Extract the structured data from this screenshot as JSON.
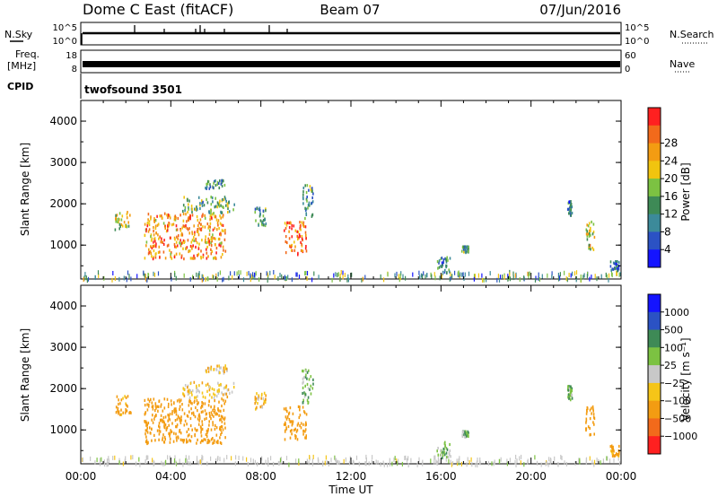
{
  "header": {
    "station": "Dome C East (fitACF)",
    "beam": "Beam 07",
    "date": "07/Jun/2016"
  },
  "top_panels": {
    "nsky_label": "N.Sky",
    "nsky_ticks": [
      "10^5",
      "10^0"
    ],
    "nsearch_label": "N.Search",
    "nsearch_ticks": [
      "10^5",
      "10^0"
    ],
    "freq_label_1": "Freq.",
    "freq_label_2": "[MHz]",
    "freq_ticks": [
      "18",
      "8"
    ],
    "nave_label": "Nave",
    "nave_ticks": [
      "60",
      "0"
    ],
    "cpid_label": "CPID",
    "cpid_text": "twofsound 3501"
  },
  "colors": {
    "power": [
      "#1414ff",
      "#2b52c4",
      "#3c8a9a",
      "#3e8a56",
      "#7cc242",
      "#f1c40f",
      "#f39c12",
      "#f26a1b",
      "#ff2020"
    ],
    "velocity": [
      "#ff2020",
      "#f26a1b",
      "#f39c12",
      "#f5c518",
      "#c8c8c8",
      "#7cc242",
      "#3e8a56",
      "#2b52c4",
      "#1414ff"
    ]
  },
  "chart_data": [
    {
      "type": "heatmap",
      "title": "",
      "ylabel": "Slant Range [km]",
      "xlabel": "Time UT",
      "x_ticks": [
        "00:00",
        "04:00",
        "08:00",
        "12:00",
        "16:00",
        "20:00",
        "00:00"
      ],
      "y_ticks": [
        "1000",
        "2000",
        "3000",
        "4000"
      ],
      "xlim_hours": [
        0,
        24
      ],
      "ylim_km": [
        180,
        4500
      ],
      "colorbar_label": "Power [dB]",
      "colorbar_ticks": [
        "4",
        "8",
        "12",
        "16",
        "20",
        "24",
        "28"
      ],
      "colorbar_range": [
        0,
        32
      ],
      "echo_regions": [
        {
          "t0": 1.5,
          "t1": 2.2,
          "r0": 1400,
          "r1": 1850,
          "level": 18
        },
        {
          "t0": 2.8,
          "t1": 6.4,
          "r0": 700,
          "r1": 1800,
          "level": 24
        },
        {
          "t0": 4.5,
          "t1": 6.8,
          "r0": 1800,
          "r1": 2200,
          "level": 14
        },
        {
          "t0": 5.5,
          "t1": 6.5,
          "r0": 2400,
          "r1": 2600,
          "level": 10
        },
        {
          "t0": 7.7,
          "t1": 8.2,
          "r0": 1500,
          "r1": 1950,
          "level": 12
        },
        {
          "t0": 9.0,
          "t1": 10.0,
          "r0": 800,
          "r1": 1600,
          "level": 26
        },
        {
          "t0": 9.8,
          "t1": 10.3,
          "r0": 1600,
          "r1": 2500,
          "level": 12
        },
        {
          "t0": 15.8,
          "t1": 16.4,
          "r0": 350,
          "r1": 750,
          "level": 10
        },
        {
          "t0": 16.9,
          "t1": 17.2,
          "r0": 850,
          "r1": 1000,
          "level": 12
        },
        {
          "t0": 21.6,
          "t1": 21.8,
          "r0": 1750,
          "r1": 2100,
          "level": 10
        },
        {
          "t0": 22.4,
          "t1": 22.8,
          "r0": 900,
          "r1": 1600,
          "level": 18
        },
        {
          "t0": 23.5,
          "t1": 23.9,
          "r0": 400,
          "r1": 650,
          "level": 8
        }
      ]
    },
    {
      "type": "heatmap",
      "title": "",
      "ylabel": "Slant Range [km]",
      "xlabel": "Time UT",
      "x_ticks": [
        "00:00",
        "04:00",
        "08:00",
        "12:00",
        "16:00",
        "20:00",
        "00:00"
      ],
      "y_ticks": [
        "1000",
        "2000",
        "3000",
        "4000"
      ],
      "xlim_hours": [
        0,
        24
      ],
      "ylim_km": [
        180,
        4500
      ],
      "colorbar_label": "Velocity [m s⁻¹]",
      "colorbar_ticks": [
        "1000",
        "500",
        "100",
        "25",
        "−25",
        "−100",
        "−500",
        "−1000"
      ],
      "echo_regions": [
        {
          "t0": 1.5,
          "t1": 2.2,
          "r0": 1400,
          "r1": 1850,
          "level": -150
        },
        {
          "t0": 2.8,
          "t1": 6.4,
          "r0": 700,
          "r1": 1800,
          "level": -250
        },
        {
          "t0": 4.5,
          "t1": 6.8,
          "r0": 1800,
          "r1": 2200,
          "level": -50
        },
        {
          "t0": 5.5,
          "t1": 6.5,
          "r0": 2400,
          "r1": 2600,
          "level": -60
        },
        {
          "t0": 7.7,
          "t1": 8.2,
          "r0": 1500,
          "r1": 1950,
          "level": -80
        },
        {
          "t0": 9.0,
          "t1": 10.0,
          "r0": 800,
          "r1": 1600,
          "level": -300
        },
        {
          "t0": 9.8,
          "t1": 10.3,
          "r0": 1600,
          "r1": 2500,
          "level": 80
        },
        {
          "t0": 15.8,
          "t1": 16.4,
          "r0": 350,
          "r1": 750,
          "level": 60
        },
        {
          "t0": 16.9,
          "t1": 17.2,
          "r0": 850,
          "r1": 1000,
          "level": 60
        },
        {
          "t0": 21.6,
          "t1": 21.8,
          "r0": 1750,
          "r1": 2100,
          "level": 60
        },
        {
          "t0": 22.4,
          "t1": 22.8,
          "r0": 900,
          "r1": 1600,
          "level": -300
        },
        {
          "t0": 23.5,
          "t1": 23.9,
          "r0": 400,
          "r1": 650,
          "level": -150
        }
      ]
    }
  ]
}
